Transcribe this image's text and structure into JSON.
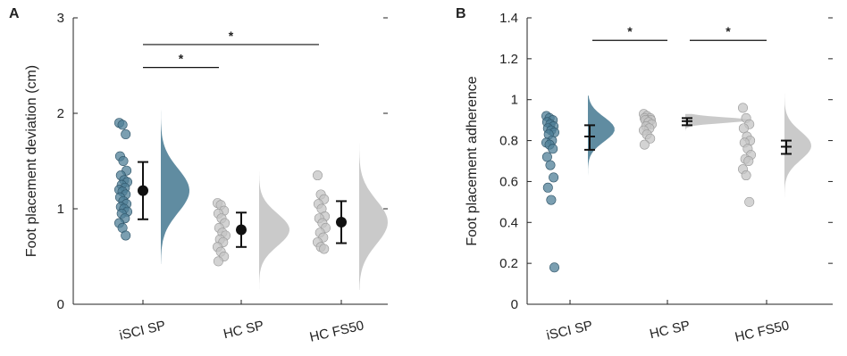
{
  "colors": {
    "iscI": "#4f7f97",
    "hc": "#c4c4c4",
    "axis": "#222222"
  },
  "chart_data": [
    {
      "type": "scatter",
      "panel": "A",
      "ylabel": "Foot placement deviation (cm)",
      "ylim": [
        0,
        3
      ],
      "yticks": [
        0,
        1,
        2,
        3
      ],
      "categories": [
        "iSCI SP",
        "HC SP",
        "HC FS50"
      ],
      "series": [
        {
          "name": "iSCI SP",
          "color": "#4f7f97",
          "points": [
            1.9,
            1.88,
            1.78,
            1.55,
            1.5,
            1.4,
            1.35,
            1.3,
            1.28,
            1.25,
            1.22,
            1.2,
            1.18,
            1.15,
            1.12,
            1.08,
            1.05,
            1.02,
            1.0,
            0.97,
            0.95,
            0.9,
            0.85,
            0.8,
            0.72
          ],
          "mean": 1.19,
          "err_low": 0.89,
          "err_high": 1.49,
          "density": {
            "center": 1.19,
            "sd": 0.23,
            "min": 0.42,
            "max": 2.22,
            "width": 32
          }
        },
        {
          "name": "HC SP",
          "color": "#c4c4c4",
          "points": [
            1.06,
            1.04,
            0.98,
            0.95,
            0.9,
            0.85,
            0.8,
            0.75,
            0.72,
            0.68,
            0.65,
            0.6,
            0.55,
            0.5,
            0.45
          ],
          "mean": 0.78,
          "err_low": 0.6,
          "err_high": 0.96,
          "density": {
            "center": 0.78,
            "sd": 0.17,
            "min": 0.15,
            "max": 1.4,
            "width": 34
          }
        },
        {
          "name": "HC FS50",
          "color": "#c4c4c4",
          "points": [
            1.35,
            1.15,
            1.1,
            1.05,
            1.0,
            0.92,
            0.9,
            0.85,
            0.8,
            0.75,
            0.7,
            0.65,
            0.6,
            0.58
          ],
          "mean": 0.86,
          "err_low": 0.64,
          "err_high": 1.08,
          "density": {
            "center": 0.86,
            "sd": 0.23,
            "min": 0.15,
            "max": 1.72,
            "width": 32
          }
        }
      ],
      "significance": [
        {
          "from": "iSCI SP",
          "to": "HC SP",
          "y": 2.48,
          "label": "*"
        },
        {
          "from": "iSCI SP",
          "to": "HC FS50",
          "y": 2.72,
          "label": "*"
        }
      ]
    },
    {
      "type": "scatter",
      "panel": "B",
      "ylabel": "Foot placement adherence",
      "ylim": [
        0,
        1.4
      ],
      "yticks": [
        0,
        0.2,
        0.4,
        0.6,
        0.8,
        1,
        1.2,
        1.4
      ],
      "categories": [
        "iSCI SP",
        "HC SP",
        "HC FS50"
      ],
      "series": [
        {
          "name": "iSCI SP",
          "color": "#4f7f97",
          "points": [
            0.92,
            0.91,
            0.9,
            0.89,
            0.88,
            0.87,
            0.86,
            0.85,
            0.84,
            0.83,
            0.8,
            0.79,
            0.78,
            0.76,
            0.72,
            0.68,
            0.62,
            0.57,
            0.51,
            0.18
          ],
          "mean": 0.82,
          "err_low": 0.755,
          "err_high": 0.875,
          "density": {
            "center": 0.855,
            "sd": 0.06,
            "min": 0.08,
            "max": 1.02,
            "width": 30
          }
        },
        {
          "name": "HC SP",
          "color": "#c4c4c4",
          "points": [
            0.93,
            0.92,
            0.91,
            0.91,
            0.9,
            0.9,
            0.9,
            0.89,
            0.88,
            0.87,
            0.86,
            0.85,
            0.83,
            0.81,
            0.78
          ],
          "mean": 0.895,
          "err_low": 0.875,
          "err_high": 0.91,
          "density": {
            "center": 0.9,
            "sd": 0.014,
            "min": 0.78,
            "max": 0.93,
            "width": 72
          }
        },
        {
          "name": "HC FS50",
          "color": "#c4c4c4",
          "points": [
            0.96,
            0.91,
            0.88,
            0.86,
            0.82,
            0.8,
            0.79,
            0.76,
            0.73,
            0.71,
            0.7,
            0.66,
            0.63,
            0.5
          ],
          "mean": 0.77,
          "err_low": 0.735,
          "err_high": 0.8,
          "density": {
            "center": 0.775,
            "sd": 0.07,
            "min": 0.38,
            "max": 1.07,
            "width": 30
          }
        }
      ],
      "significance": [
        {
          "from": "iSCI SP",
          "to": "HC SP",
          "y": 1.29,
          "label": "*"
        },
        {
          "from": "HC SP",
          "to": "HC FS50",
          "y": 1.29,
          "label": "*"
        }
      ]
    }
  ],
  "panels": [
    {
      "label": "A",
      "ylabel": "Foot placement deviation (cm)"
    },
    {
      "label": "B",
      "ylabel": "Foot placement adherence"
    }
  ]
}
